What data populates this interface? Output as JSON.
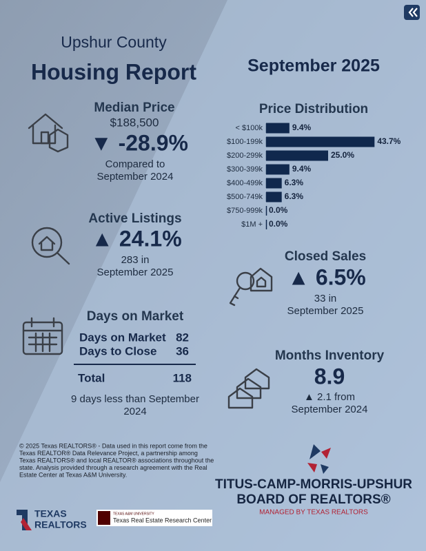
{
  "header": {
    "county": "Upshur County",
    "title": "Housing Report",
    "period": "September 2025"
  },
  "median_price": {
    "title": "Median Price",
    "value": "$188,500",
    "change": "▼ -28.9%",
    "note_1": "Compared to",
    "note_2": "September 2024"
  },
  "active_listings": {
    "title": "Active Listings",
    "change": "▲ 24.1%",
    "note_1": "283 in",
    "note_2": "September 2025"
  },
  "days_on_market": {
    "title": "Days on Market",
    "rows": [
      [
        "Days on Market",
        "82"
      ],
      [
        "Days to Close",
        "36"
      ]
    ],
    "total": [
      "Total",
      "118"
    ],
    "note_1": "9 days less than September",
    "note_2": "2024"
  },
  "price_distribution": {
    "title": "Price Distribution",
    "categories": [
      "< $100k",
      "$100-199k",
      "$200-299k",
      "$300-399k",
      "$400-499k",
      "$500-749k",
      "$750-999k",
      "$1M +"
    ],
    "values": [
      9.4,
      43.7,
      25.0,
      9.4,
      6.3,
      6.3,
      0.0,
      0.0
    ],
    "value_labels": [
      "9.4%",
      "43.7%",
      "25.0%",
      "9.4%",
      "6.3%",
      "6.3%",
      "0.0%",
      "0.0%"
    ],
    "color": "#10284d"
  },
  "closed_sales": {
    "title": "Closed Sales",
    "change": "▲ 6.5%",
    "note_1": "33 in",
    "note_2": "September 2025"
  },
  "months_inventory": {
    "title": "Months Inventory",
    "value": "8.9",
    "note_1": "▲ 2.1 from",
    "note_2": "September 2024"
  },
  "disclaimer": [
    "© 2025 Texas REALTORS® - Data used in this report come from the",
    "Texas REALTOR® Data Relevance Project, a partnership among",
    "Texas REALTORS® and local REALTOR® associations throughout the",
    "state. Analysis provided through a research agreement with the Real",
    "Estate Center at Texas A&M University."
  ],
  "logos": {
    "texas_1": "TEXAS",
    "texas_2": "REALTORS",
    "tamu_small": "TEXAS A&M UNIVERSITY",
    "tamu": "Texas Real Estate Research Center",
    "board_1": "TITUS-CAMP-MORRIS-UPSHUR",
    "board_2": "BOARD OF REALTORS®",
    "board_3": "MANAGED BY TEXAS REALTORS"
  }
}
